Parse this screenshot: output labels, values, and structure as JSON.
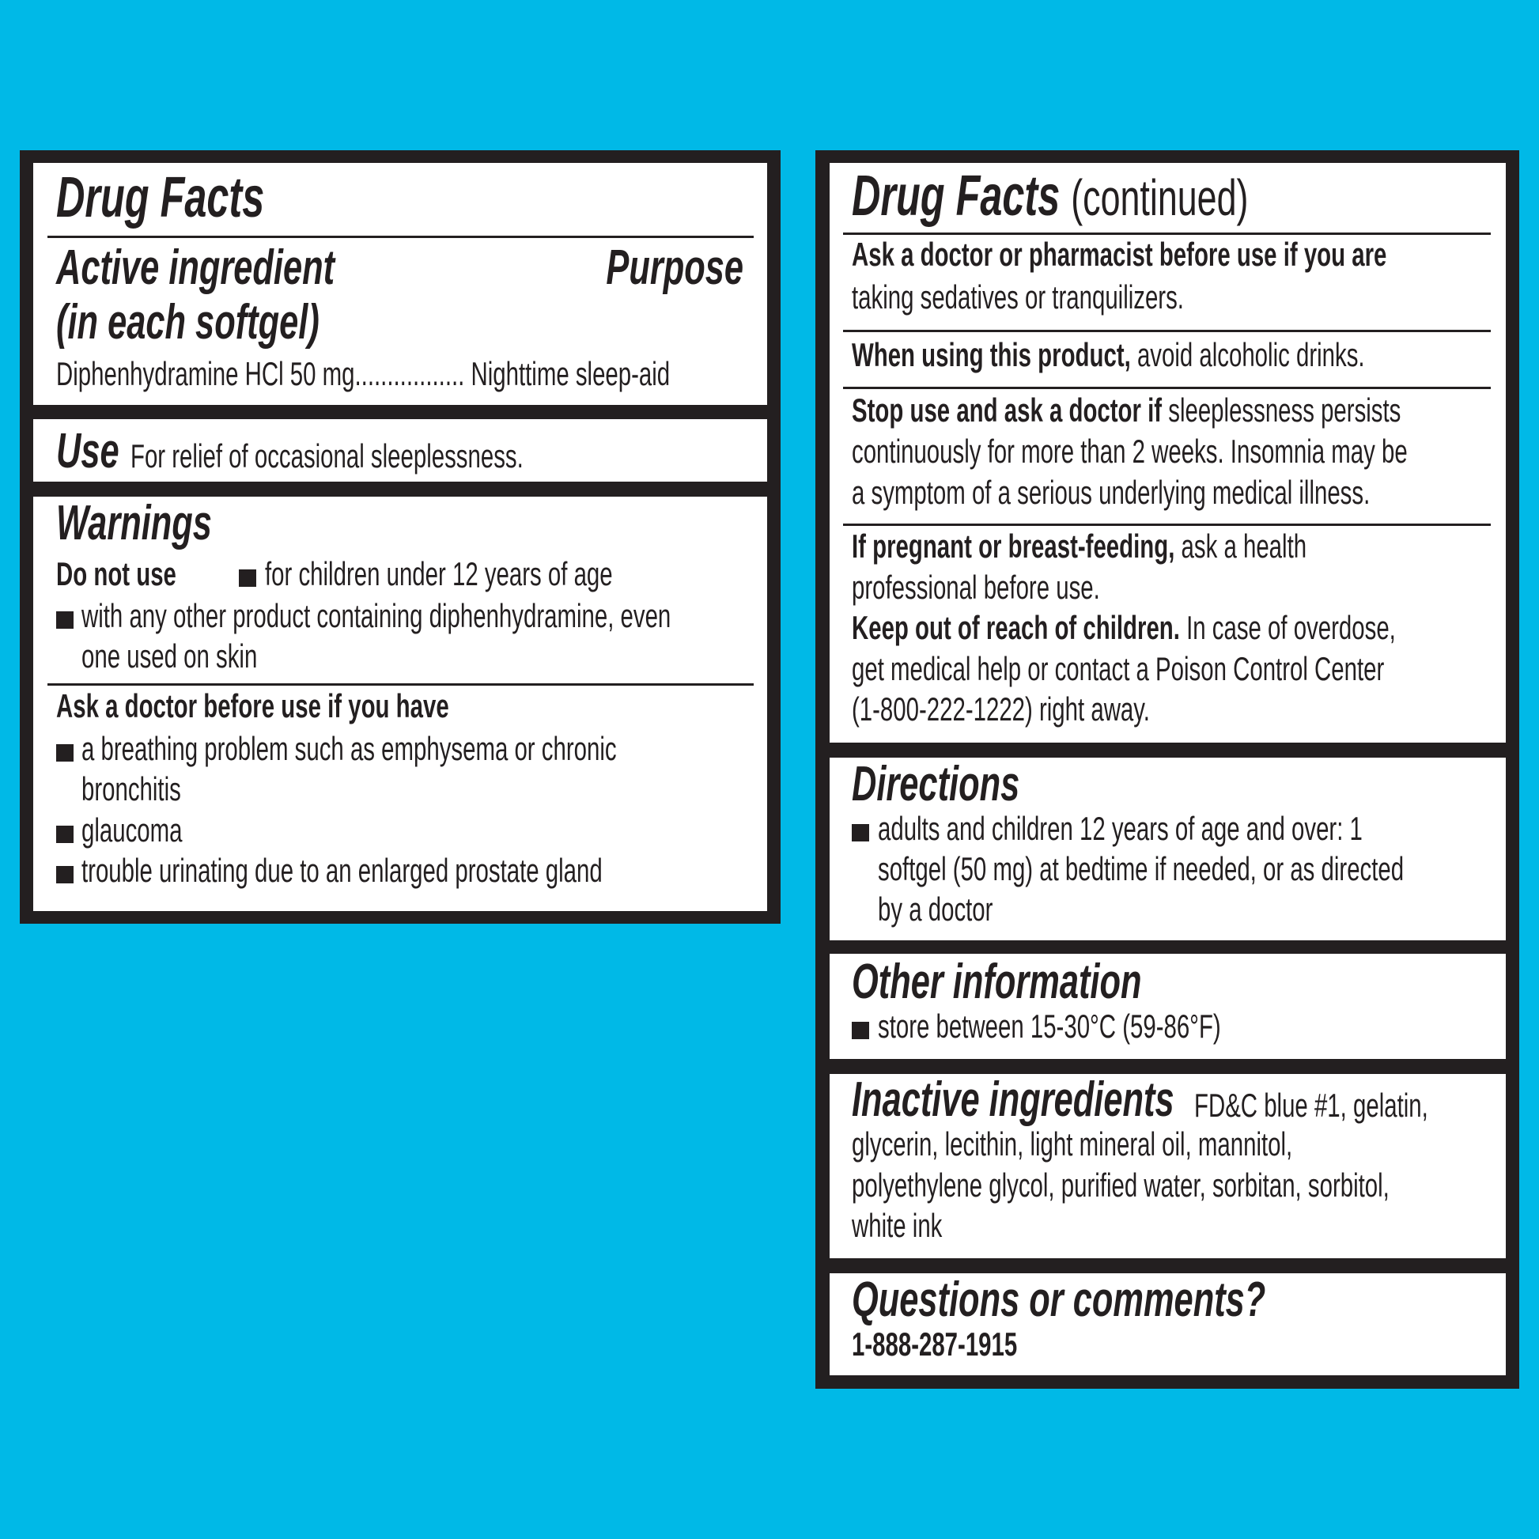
{
  "colors": {
    "background": "#00b9e7",
    "ink": "#231f20",
    "panel": "#ffffff"
  },
  "left": {
    "title": "Drug Facts",
    "active_heading_1": "Active ingredient",
    "active_heading_2": "(in each softgel)",
    "purpose_heading": "Purpose",
    "ingredient_line": "Diphenhydramine HCl 50 mg................. Nighttime sleep-aid",
    "use_heading": "Use",
    "use_text": "For relief of occasional sleeplessness.",
    "warnings_heading": "Warnings",
    "do_not_use_label": "Do not use",
    "do_not_use_items": [
      "for children under 12 years of age",
      "with any other product containing diphenhydramine, even",
      "one used on skin"
    ],
    "ask_doctor_heading": "Ask a doctor before use if you have",
    "ask_doctor_items": [
      "a breathing problem such as emphysema or chronic",
      "bronchitis",
      "glaucoma",
      "trouble urinating due to an enlarged prostate gland"
    ]
  },
  "right": {
    "title": "Drug Facts",
    "title_suffix": "(continued)",
    "ask_pharmacist_bold": "Ask a doctor or pharmacist before use if you are",
    "ask_pharmacist_text": "taking sedatives or tranquilizers.",
    "when_using_bold": "When using this product,",
    "when_using_text": "avoid alcoholic drinks.",
    "stop_use_bold": "Stop use and ask a doctor if",
    "stop_use_lines": [
      "sleeplessness persists",
      "continuously for more than 2 weeks. Insomnia may be",
      "a symptom of a serious underlying medical illness."
    ],
    "pregnant_bold": "If pregnant or breast-feeding,",
    "pregnant_lines": [
      "ask a health",
      "professional before use."
    ],
    "keep_out_bold": "Keep out of reach of children.",
    "keep_out_lines": [
      "In case of overdose,",
      "get medical help or contact a Poison Control Center",
      "(1-800-222-1222) right away."
    ],
    "directions_heading": "Directions",
    "directions_lines": [
      "adults and children 12 years of age and over: 1",
      "softgel (50 mg) at bedtime if needed, or as directed",
      "by a doctor"
    ],
    "other_heading": "Other information",
    "other_item": "store between 15-30°C (59-86°F)",
    "inactive_heading": "Inactive ingredients",
    "inactive_lines": [
      "FD&C blue #1, gelatin,",
      "glycerin, lecithin, light mineral oil, mannitol,",
      "polyethylene glycol, purified water, sorbitan, sorbitol,",
      "white ink"
    ],
    "questions_heading": "Questions or comments?",
    "phone": "1-888-287-1915"
  }
}
